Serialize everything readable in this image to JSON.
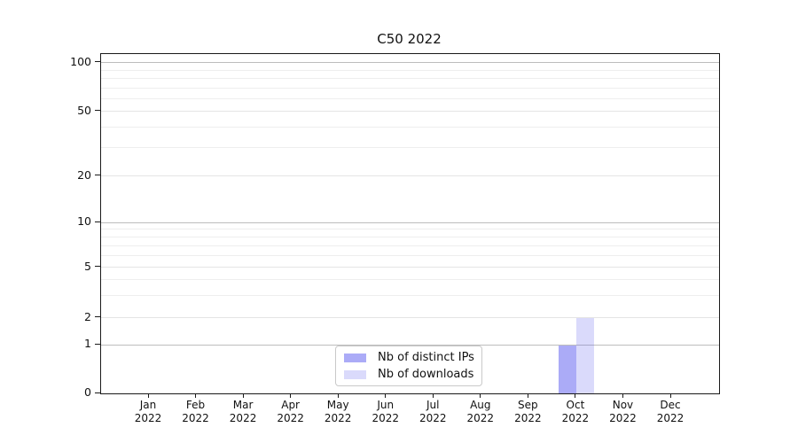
{
  "title": "C50 2022",
  "chart_data": {
    "type": "bar",
    "title": "C50 2022",
    "categories": [
      "Jan 2022",
      "Feb 2022",
      "Mar 2022",
      "Apr 2022",
      "May 2022",
      "Jun 2022",
      "Jul 2022",
      "Aug 2022",
      "Sep 2022",
      "Oct 2022",
      "Nov 2022",
      "Dec 2022"
    ],
    "series": [
      {
        "name": "Nb of distinct IPs",
        "color": "rgba(68,68,238,0.45)",
        "values": [
          0,
          0,
          0,
          0,
          0,
          0,
          0,
          0,
          0,
          1,
          0,
          0
        ]
      },
      {
        "name": "Nb of downloads",
        "color": "rgba(102,102,238,0.24)",
        "values": [
          0,
          0,
          0,
          0,
          0,
          0,
          0,
          0,
          0,
          2,
          0,
          0
        ]
      }
    ],
    "xlabel": "",
    "ylabel": "",
    "y_axis": {
      "scale": "symlog-like",
      "ticks": [
        0,
        1,
        2,
        5,
        10,
        20,
        50,
        100
      ],
      "tick_labels": [
        "0",
        "1",
        "2",
        "5",
        "10",
        "20",
        "50",
        "100"
      ],
      "minor_ticks": [
        3,
        4,
        6,
        7,
        8,
        9,
        30,
        40,
        60,
        70,
        80,
        90
      ],
      "ylim": [
        0,
        113
      ],
      "anchor_fractions": [
        [
          0,
          0
        ],
        [
          1,
          0.1423
        ],
        [
          2,
          0.2232
        ],
        [
          5,
          0.3708
        ],
        [
          10,
          0.5039
        ],
        [
          20,
          0.6397
        ],
        [
          50,
          0.8303
        ],
        [
          100,
          0.9739
        ]
      ]
    },
    "grid": true,
    "legend_position": "lower center"
  },
  "legend": {
    "items": [
      {
        "label": "Nb of distinct IPs",
        "color": "rgba(68,68,238,0.45)"
      },
      {
        "label": "Nb of downloads",
        "color": "rgba(102,102,238,0.24)"
      }
    ]
  },
  "colors": {
    "background": "#ffffff",
    "bar_distinct_ips_effective": "#a8a8f4",
    "bar_downloads_effective": "#dbdbf8",
    "grid_major": "#bdbdbd",
    "grid_mid": "#e4e4e4",
    "grid_minor": "#eeeeee",
    "axis": "#1a1a1a",
    "text": "#111111"
  }
}
